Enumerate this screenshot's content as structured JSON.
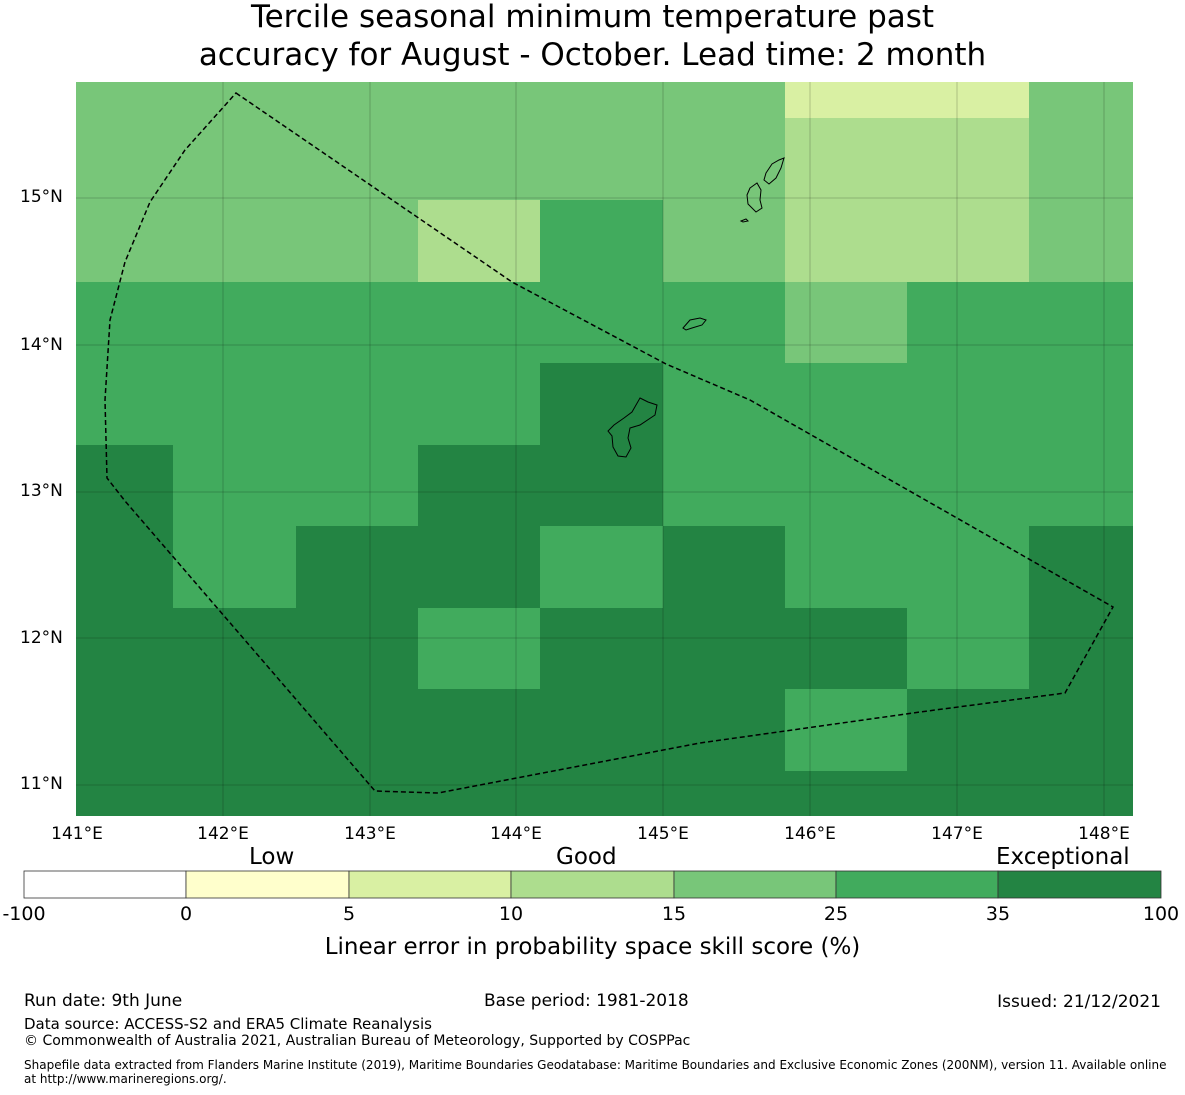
{
  "title": {
    "line1": "Tercile seasonal minimum temperature past",
    "line2": "accuracy for August - October. Lead time: 2 month"
  },
  "map": {
    "lat_labels": [
      "15°N",
      "14°N",
      "13°N",
      "12°N",
      "11°N"
    ],
    "lon_labels": [
      "141°E",
      "142°E",
      "143°E",
      "144°E",
      "145°E",
      "146°E",
      "147°E",
      "148°E"
    ]
  },
  "colorbar": {
    "categories": [
      "Low",
      "Good",
      "Exceptional"
    ],
    "ticks": [
      "-100",
      "0",
      "5",
      "10",
      "15",
      "25",
      "35",
      "100"
    ],
    "colors": [
      "#ffffff",
      "#ffffcc",
      "#d9f0a3",
      "#addd8e",
      "#78c679",
      "#41ab5d",
      "#238443"
    ],
    "title": "Linear error in probability space skill score (%)"
  },
  "footer": {
    "run_date": "Run date: 9th June",
    "base_period": "Base period: 1981-2018",
    "issued": "Issued: 21/12/2021",
    "data_source": "Data source: ACCESS-S2 and ERA5 Climate Reanalysis",
    "copyright": "© Commonwealth of Australia 2021, Australian Bureau of Meteorology, Supported by COSPPac",
    "shapefile_line1": "Shapefile data extracted from Flanders Marine Institute (2019), Maritime Boundaries Geodatabase: Maritime Boundaries and Exclusive Economic Zones (200NM), version 11. Available online",
    "shapefile_line2": "at http://www.marineregions.org/."
  }
}
